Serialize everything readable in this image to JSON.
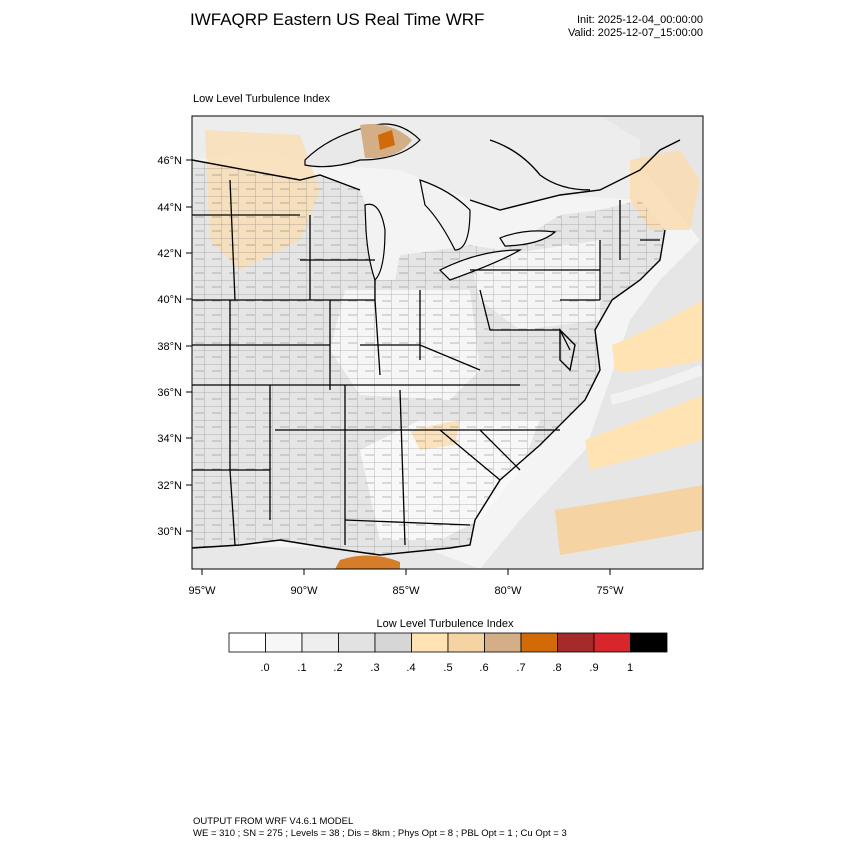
{
  "header": {
    "title": "IWFAQRP Eastern US Real Time WRF",
    "init": "Init: 2025-12-04_00:00:00",
    "valid": "Valid: 2025-12-07_15:00:00"
  },
  "plot": {
    "subtitle": "Low Level Turbulence Index",
    "lat_ticks": [
      "46°N",
      "44°N",
      "42°N",
      "40°N",
      "38°N",
      "36°N",
      "34°N",
      "32°N",
      "30°N"
    ],
    "lon_ticks": [
      "95°W",
      "90°W",
      "85°W",
      "80°W",
      "75°W"
    ]
  },
  "colorbar": {
    "title": "Low Level Turbulence Index",
    "labels": [
      ".0",
      ".1",
      ".2",
      ".3",
      ".4",
      ".5",
      ".6",
      ".7",
      ".8",
      ".9",
      "1"
    ],
    "colors": [
      "#ffffff",
      "#f7f7f7",
      "#eeeeee",
      "#e2e2e2",
      "#d6d6d6",
      "#ffe3b3",
      "#f6d3a2",
      "#d4ae86",
      "#d26a07",
      "#a52a2a",
      "#d9262c",
      "#000000"
    ]
  },
  "footer": {
    "line1": "OUTPUT FROM WRF V4.6.1 MODEL",
    "line2": "WE = 310 ; SN = 275 ; Levels = 38 ; Dis = 8km ; Phys Opt = 8 ; PBL Opt = 1 ; Cu Opt = 3"
  }
}
